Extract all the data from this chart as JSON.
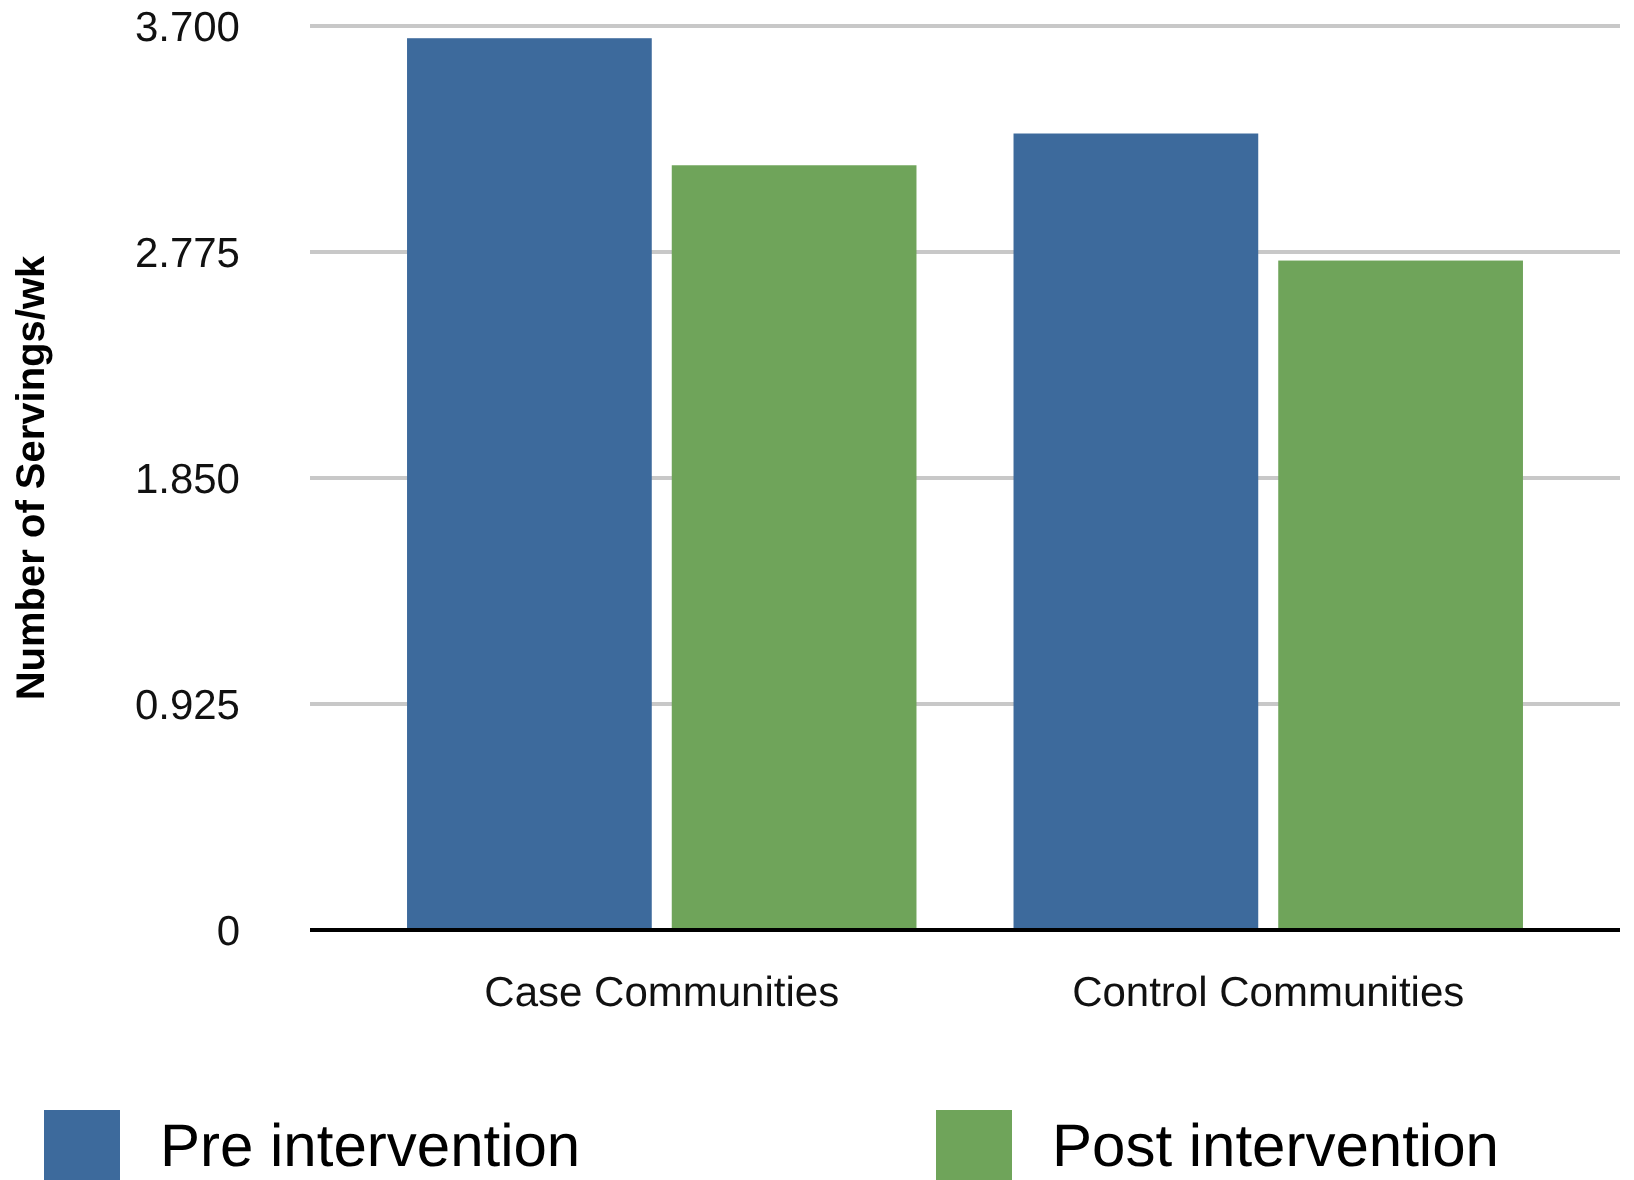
{
  "chart_data": {
    "type": "bar",
    "ylabel": "Number of Servings/wk",
    "categories": [
      "Case Communities",
      "Control Communities"
    ],
    "series": [
      {
        "name": "Pre intervention",
        "color": "#3d6a9c",
        "values": [
          3.65,
          3.26
        ]
      },
      {
        "name": "Post intervention",
        "color": "#6fa45a",
        "values": [
          3.13,
          2.74
        ]
      }
    ],
    "ylim": [
      0,
      3.7
    ],
    "yticks": [
      0,
      {
        "value": 0.925,
        "label": "0.925"
      },
      {
        "value": 1.85,
        "label": "1.850"
      },
      {
        "value": 2.775,
        "label": "2.775"
      },
      {
        "value": 3.7,
        "label": "3.700"
      }
    ],
    "grid": "y",
    "legend": "bottom"
  }
}
